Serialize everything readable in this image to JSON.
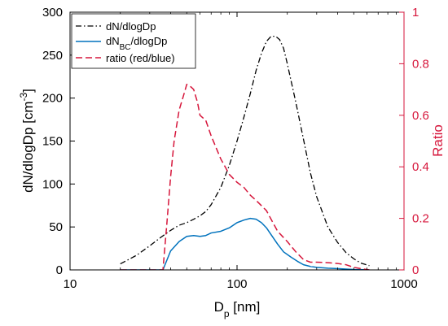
{
  "chart_data": {
    "type": "line",
    "x_scale": "log",
    "xlim": [
      10,
      1000
    ],
    "ylim_left": [
      0,
      300
    ],
    "ylim_right": [
      0,
      1
    ],
    "grid": false,
    "legend_position": "top-left",
    "x_ticks": [
      "10",
      "100",
      "1000"
    ],
    "y_left_ticks": [
      "0",
      "50",
      "100",
      "150",
      "200",
      "250",
      "300"
    ],
    "y_right_ticks": [
      "0",
      "0.2",
      "0.4",
      "0.6",
      "0.8",
      "1"
    ],
    "xlabel": {
      "main": "D",
      "sub": "p",
      "rest": " [nm]"
    },
    "ylabel_left": {
      "main": "dN/dlogDp [cm",
      "sup": "-3",
      "rest": "]"
    },
    "ylabel_right": "Ratio",
    "colors": {
      "dN": "#000000",
      "dNBC": "#0072BD",
      "ratio": "#D6163B",
      "right_axis": "#D6163B"
    },
    "series": [
      {
        "id": "dN",
        "label": {
          "main": "dN/dlogDp",
          "sub": "",
          "rest": ""
        },
        "axis": "left",
        "style": "dashdot",
        "x": [
          20,
          25,
          30,
          35,
          40,
          45,
          50,
          55,
          60,
          65,
          70,
          80,
          90,
          100,
          110,
          120,
          130,
          140,
          150,
          160,
          170,
          180,
          190,
          200,
          225,
          250,
          275,
          300,
          350,
          400,
          450,
          500,
          550,
          620
        ],
        "y": [
          7,
          17,
          28,
          38,
          46,
          52,
          55,
          59,
          63,
          68,
          76,
          96,
          122,
          150,
          178,
          205,
          232,
          252,
          266,
          272,
          272,
          268,
          258,
          240,
          195,
          152,
          113,
          85,
          50,
          32,
          20,
          13,
          8,
          5
        ]
      },
      {
        "id": "dNBC",
        "label": {
          "main": "dN",
          "sub": "BC",
          "rest": "/dlogDp"
        },
        "axis": "left",
        "style": "solid",
        "x": [
          20,
          36,
          40,
          45,
          50,
          55,
          60,
          65,
          70,
          80,
          90,
          100,
          110,
          120,
          130,
          140,
          150,
          160,
          175,
          190,
          210,
          230,
          250,
          275,
          300,
          350,
          400,
          450,
          500,
          550,
          620
        ],
        "y": [
          0,
          0,
          22,
          33,
          39,
          40,
          39,
          40,
          43,
          45,
          49,
          55,
          58,
          60,
          59,
          55,
          49,
          41,
          30,
          21,
          15,
          10,
          6,
          4,
          3,
          2,
          1.5,
          1,
          0.5,
          0.3,
          0
        ],
        "y_values_units": "cm^-3"
      },
      {
        "id": "ratio",
        "label": {
          "main": "ratio (red/blue)",
          "sub": "",
          "rest": ""
        },
        "axis": "right",
        "style": "dashed",
        "x": [
          20,
          36,
          38,
          40,
          42,
          45,
          48,
          50,
          53,
          55,
          58,
          60,
          65,
          70,
          80,
          90,
          100,
          110,
          120,
          130,
          150,
          175,
          200,
          225,
          250,
          275,
          300,
          350,
          400,
          450,
          500,
          550,
          620
        ],
        "y": [
          0,
          0,
          0.18,
          0.36,
          0.5,
          0.62,
          0.68,
          0.72,
          0.71,
          0.7,
          0.65,
          0.6,
          0.58,
          0.52,
          0.43,
          0.37,
          0.34,
          0.32,
          0.29,
          0.27,
          0.23,
          0.15,
          0.11,
          0.07,
          0.04,
          0.03,
          0.03,
          0.028,
          0.025,
          0.02,
          0.01,
          0.005,
          0
        ]
      }
    ]
  }
}
